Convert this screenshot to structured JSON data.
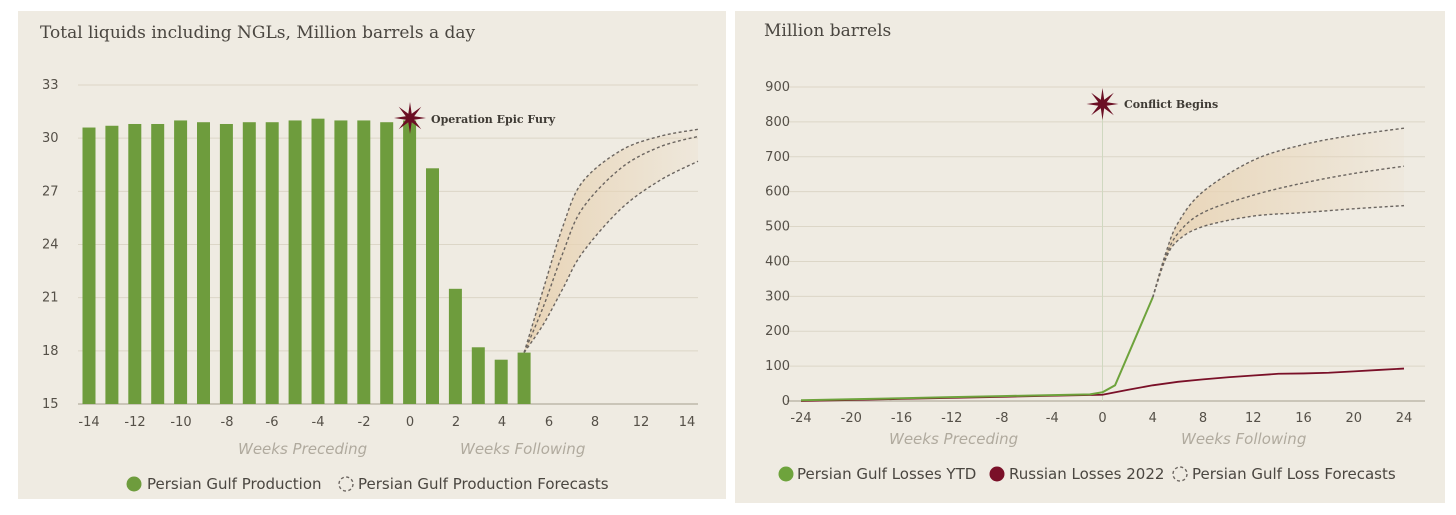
{
  "colors": {
    "panel_bg": "#efebe2",
    "bar_green": "#6e9c3d",
    "line_green": "#6ea33c",
    "russian_red": "#7a1028",
    "forecast_fill": "#e8d3b4",
    "forecast_stroke": "#6b6560",
    "star": "#6b0f24"
  },
  "chart_data": [
    {
      "type": "bar",
      "title": "Total liquids including NGLs, Million barrels a day",
      "x_ticks": [
        "-14",
        "-12",
        "-10",
        "-8",
        "-6",
        "-4",
        "-2",
        "0",
        "2",
        "4",
        "6",
        "8",
        "12",
        "14"
      ],
      "y_ticks": [
        "33",
        "30",
        "27",
        "24",
        "21",
        "18",
        "15"
      ],
      "ylim": [
        15,
        33
      ],
      "grid": true,
      "xlabel_left": "Weeks Preceding",
      "xlabel_right": "Weeks Following",
      "annotation": "Operation Epic Fury",
      "series": [
        {
          "name": "Persian Gulf Production",
          "x": [
            -14,
            -13,
            -12,
            -11,
            -10,
            -9,
            -8,
            -7,
            -6,
            -5,
            -4,
            -3,
            -2,
            -1,
            0,
            1,
            2,
            3,
            4,
            5
          ],
          "values": [
            30.6,
            30.7,
            30.8,
            30.8,
            31.0,
            30.9,
            30.8,
            30.9,
            30.9,
            31.0,
            31.1,
            31.0,
            31.0,
            30.9,
            31.0,
            28.3,
            21.5,
            18.2,
            17.5,
            17.9
          ]
        },
        {
          "name": "Persian Gulf Production Forecasts",
          "style": "dashed-band",
          "upper": {
            "x": [
              5,
              6,
              7,
              8,
              10,
              12,
              14
            ],
            "values": [
              17.9,
              21.5,
              25.0,
              27.5,
              29.3,
              30.1,
              30.5
            ]
          },
          "middle": {
            "x": [
              5,
              6,
              7,
              8,
              10,
              12,
              14
            ],
            "values": [
              17.9,
              20.5,
              23.5,
              26.0,
              28.3,
              29.5,
              30.1
            ]
          },
          "lower": {
            "x": [
              5,
              6,
              7,
              8,
              10,
              12,
              14
            ],
            "values": [
              17.9,
              19.5,
              21.5,
              23.5,
              26.0,
              27.6,
              28.7
            ]
          }
        }
      ],
      "legend_position": "bottom"
    },
    {
      "type": "line",
      "title": "Million barrels",
      "x_ticks": [
        "-24",
        "-20",
        "-16",
        "-12",
        "-8",
        "-4",
        "0",
        "4",
        "8",
        "12",
        "16",
        "20",
        "24"
      ],
      "y_ticks": [
        "900",
        "800",
        "700",
        "600",
        "500",
        "400",
        "300",
        "200",
        "100",
        "0"
      ],
      "ylim": [
        0,
        900
      ],
      "xlim": [
        -24,
        24
      ],
      "grid": true,
      "xlabel_left": "Weeks Preceding",
      "xlabel_right": "Weeks Following",
      "annotation": "Conflict Begins",
      "series": [
        {
          "name": "Persian Gulf Losses YTD",
          "x": [
            -24,
            -20,
            -16,
            -12,
            -8,
            -4,
            -1,
            0,
            1,
            4
          ],
          "values": [
            2,
            5,
            8,
            11,
            14,
            17,
            19,
            25,
            45,
            297
          ]
        },
        {
          "name": "Russian Losses 2022",
          "x": [
            -24,
            -20,
            -16,
            -12,
            -8,
            -4,
            0,
            2,
            4,
            6,
            8,
            10,
            12,
            14,
            16,
            18,
            20,
            22,
            24
          ],
          "values": [
            0,
            3,
            6,
            9,
            12,
            15,
            18,
            32,
            45,
            55,
            62,
            68,
            73,
            78,
            79,
            81,
            85,
            89,
            93
          ]
        },
        {
          "name": "Persian Gulf Loss Forecasts",
          "style": "dashed-band",
          "upper": {
            "x": [
              4,
              5,
              6,
              8,
              12,
              16,
              20,
              24
            ],
            "values": [
              297,
              420,
              510,
              600,
              690,
              735,
              762,
              782
            ]
          },
          "middle": {
            "x": [
              4,
              5,
              6,
              8,
              12,
              16,
              20,
              24
            ],
            "values": [
              297,
              410,
              480,
              540,
              590,
              625,
              652,
              673
            ]
          },
          "lower": {
            "x": [
              4,
              5,
              6,
              8,
              12,
              16,
              20,
              24
            ],
            "values": [
              297,
              405,
              460,
              500,
              530,
              540,
              551,
              560
            ]
          }
        }
      ],
      "legend_position": "bottom"
    }
  ]
}
